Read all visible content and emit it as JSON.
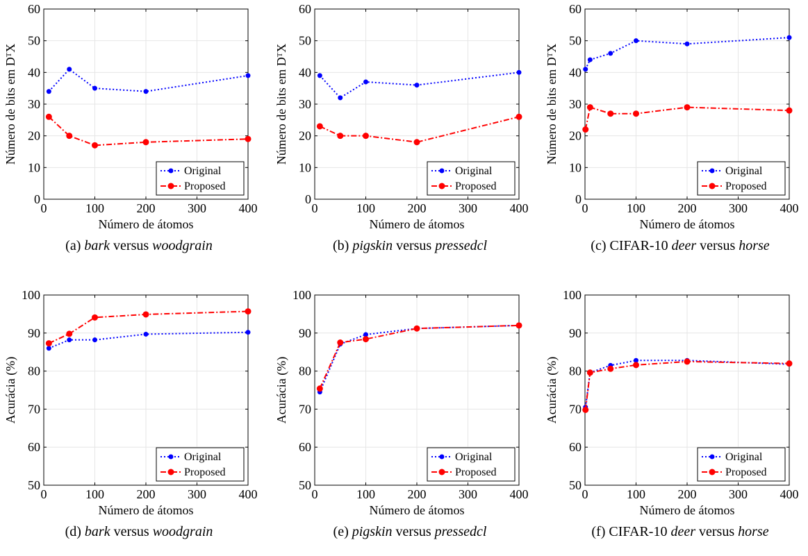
{
  "colors": {
    "original": "#0000ff",
    "proposed": "#ff0000",
    "axis": "#000000",
    "grid": "#e6e6e6"
  },
  "chart_data": [
    {
      "type": "line",
      "caption": {
        "prefix": "(a) ",
        "parts": [
          [
            "bark",
            "i"
          ],
          [
            " versus ",
            "n"
          ],
          [
            "woodgrain",
            "i"
          ]
        ]
      },
      "xlabel": "Número de átomos",
      "ylabel": "Número de bits em DᵀX",
      "xlim": [
        0,
        400
      ],
      "ylim": [
        0,
        60
      ],
      "xticks": [
        0,
        100,
        200,
        300,
        400
      ],
      "yticks": [
        0,
        10,
        20,
        30,
        40,
        50,
        60
      ],
      "x": [
        10,
        50,
        100,
        200,
        400
      ],
      "series": [
        {
          "name": "Original",
          "values": [
            34,
            41,
            35,
            34,
            39
          ]
        },
        {
          "name": "Proposed",
          "values": [
            26,
            20,
            17,
            18,
            19
          ]
        }
      ],
      "legend": "bottom-right",
      "grid": true
    },
    {
      "type": "line",
      "caption": {
        "prefix": "(b) ",
        "parts": [
          [
            "pigskin",
            "i"
          ],
          [
            " versus ",
            "n"
          ],
          [
            "pressedcl",
            "i"
          ]
        ]
      },
      "xlabel": "Número de átomos",
      "ylabel": "Número de bits em DᵀX",
      "xlim": [
        0,
        400
      ],
      "ylim": [
        0,
        60
      ],
      "xticks": [
        0,
        100,
        200,
        300,
        400
      ],
      "yticks": [
        0,
        10,
        20,
        30,
        40,
        50,
        60
      ],
      "x": [
        10,
        50,
        100,
        200,
        400
      ],
      "series": [
        {
          "name": "Original",
          "values": [
            39,
            32,
            37,
            36,
            40
          ]
        },
        {
          "name": "Proposed",
          "values": [
            23,
            20,
            20,
            18,
            26
          ]
        }
      ],
      "legend": "bottom-right",
      "grid": true
    },
    {
      "type": "line",
      "caption": {
        "prefix": "(c) CIFAR-10 ",
        "parts": [
          [
            "deer",
            "i"
          ],
          [
            " versus ",
            "n"
          ],
          [
            "horse",
            "i"
          ]
        ]
      },
      "xlabel": "Número de átomos",
      "ylabel": "Número de bits em DᵀX",
      "xlim": [
        0,
        400
      ],
      "ylim": [
        0,
        60
      ],
      "xticks": [
        0,
        100,
        200,
        300,
        400
      ],
      "yticks": [
        0,
        10,
        20,
        30,
        40,
        50,
        60
      ],
      "x": [
        1,
        10,
        50,
        100,
        200,
        400
      ],
      "series": [
        {
          "name": "Original",
          "values": [
            41,
            44,
            46,
            50,
            49,
            51
          ]
        },
        {
          "name": "Proposed",
          "values": [
            22,
            29,
            27,
            27,
            29,
            28
          ]
        }
      ],
      "legend": "bottom-right",
      "grid": true
    },
    {
      "type": "line",
      "caption": {
        "prefix": "(d) ",
        "parts": [
          [
            "bark",
            "i"
          ],
          [
            " versus ",
            "n"
          ],
          [
            "woodgrain",
            "i"
          ]
        ]
      },
      "xlabel": "Número de átomos",
      "ylabel": "Acurácia (%)",
      "xlim": [
        0,
        400
      ],
      "ylim": [
        50,
        100
      ],
      "xticks": [
        0,
        100,
        200,
        300,
        400
      ],
      "yticks": [
        50,
        60,
        70,
        80,
        90,
        100
      ],
      "x": [
        10,
        50,
        100,
        200,
        400
      ],
      "series": [
        {
          "name": "Original",
          "values": [
            86,
            88.2,
            88.2,
            89.7,
            90.2
          ]
        },
        {
          "name": "Proposed",
          "values": [
            87.3,
            89.8,
            94.1,
            94.9,
            95.7
          ]
        }
      ],
      "legend": "bottom-right",
      "grid": true
    },
    {
      "type": "line",
      "caption": {
        "prefix": "(e) ",
        "parts": [
          [
            "pigskin",
            "i"
          ],
          [
            " versus ",
            "n"
          ],
          [
            "pressedcl",
            "i"
          ]
        ]
      },
      "xlabel": "Número de átomos",
      "ylabel": "Acurácia (%)",
      "xlim": [
        0,
        400
      ],
      "ylim": [
        50,
        100
      ],
      "xticks": [
        0,
        100,
        200,
        300,
        400
      ],
      "yticks": [
        50,
        60,
        70,
        80,
        90,
        100
      ],
      "x": [
        10,
        50,
        100,
        200,
        400
      ],
      "series": [
        {
          "name": "Original",
          "values": [
            74.5,
            87.1,
            89.6,
            91.2,
            92
          ]
        },
        {
          "name": "Proposed",
          "values": [
            75.4,
            87.5,
            88.4,
            91.2,
            92
          ]
        }
      ],
      "legend": "bottom-right",
      "grid": true
    },
    {
      "type": "line",
      "caption": {
        "prefix": "(f) CIFAR-10 ",
        "parts": [
          [
            "deer",
            "i"
          ],
          [
            " versus ",
            "n"
          ],
          [
            "horse",
            "i"
          ]
        ]
      },
      "xlabel": "Número de átomos",
      "ylabel": "Acurácia (%)",
      "xlim": [
        0,
        400
      ],
      "ylim": [
        50,
        100
      ],
      "xticks": [
        0,
        100,
        200,
        300,
        400
      ],
      "yticks": [
        50,
        60,
        70,
        80,
        90,
        100
      ],
      "x": [
        1,
        10,
        50,
        100,
        200,
        400
      ],
      "series": [
        {
          "name": "Original",
          "values": [
            70.5,
            79.6,
            81.5,
            82.8,
            82.8,
            81.8
          ]
        },
        {
          "name": "Proposed",
          "values": [
            69.8,
            79.6,
            80.6,
            81.6,
            82.5,
            82
          ]
        }
      ],
      "legend": "bottom-right",
      "grid": true
    }
  ]
}
